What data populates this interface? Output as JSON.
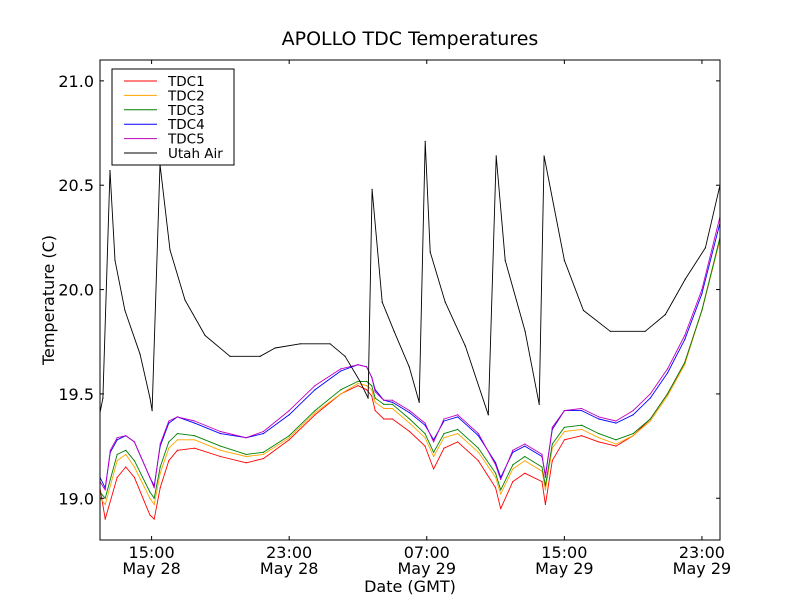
{
  "chart_data": {
    "type": "line",
    "title": "APOLLO TDC Temperatures",
    "xlabel": "Date (GMT)",
    "ylabel": "Temperature (C)",
    "x_units": "hours since May 28 12:00 GMT",
    "xlim": [
      0,
      36.05
    ],
    "ylim": [
      18.8,
      21.1
    ],
    "grid": false,
    "legend_position": "top-left",
    "x_ticks": [
      {
        "value": 3,
        "line1": "15:00",
        "line2": "May 28"
      },
      {
        "value": 11,
        "line1": "23:00",
        "line2": "May 28"
      },
      {
        "value": 19,
        "line1": "07:00",
        "line2": "May 29"
      },
      {
        "value": 27,
        "line1": "15:00",
        "line2": "May 29"
      },
      {
        "value": 35,
        "line1": "23:00",
        "line2": "May 29"
      }
    ],
    "y_ticks": [
      {
        "value": 19.0,
        "label": "19.0"
      },
      {
        "value": 19.5,
        "label": "19.5"
      },
      {
        "value": 20.0,
        "label": "20.0"
      },
      {
        "value": 20.5,
        "label": "20.5"
      },
      {
        "value": 21.0,
        "label": "21.0"
      }
    ],
    "series": [
      {
        "name": "TDC1",
        "color": "#ff0000",
        "x": [
          0,
          0.3,
          1.0,
          1.5,
          2.0,
          2.9,
          3.15,
          3.5,
          4.0,
          4.5,
          5.5,
          7.0,
          8.5,
          9.5,
          11.0,
          12.5,
          14.0,
          15.0,
          15.5,
          15.8,
          16.0,
          16.5,
          17.0,
          18.0,
          18.9,
          19.4,
          20.0,
          20.8,
          22.0,
          23.0,
          23.3,
          24.0,
          24.7,
          25.7,
          25.9,
          26.3,
          27.0,
          28.0,
          29.0,
          30.0,
          31.0,
          32.0,
          33.0,
          34.0,
          35.0,
          36.05
        ],
        "y": [
          19.05,
          18.9,
          19.1,
          19.15,
          19.1,
          18.92,
          18.9,
          19.05,
          19.18,
          19.23,
          19.24,
          19.2,
          19.17,
          19.19,
          19.28,
          19.4,
          19.5,
          19.54,
          19.52,
          19.49,
          19.42,
          19.38,
          19.38,
          19.32,
          19.25,
          19.14,
          19.24,
          19.27,
          19.18,
          19.05,
          18.95,
          19.08,
          19.12,
          19.08,
          18.97,
          19.18,
          19.28,
          19.3,
          19.27,
          19.25,
          19.3,
          19.38,
          19.5,
          19.65,
          19.9,
          20.24
        ]
      },
      {
        "name": "TDC2",
        "color": "#ffa500",
        "x": [
          0,
          0.3,
          1.0,
          1.5,
          2.0,
          2.9,
          3.15,
          3.5,
          4.0,
          4.5,
          5.5,
          7.0,
          8.5,
          9.5,
          11.0,
          12.5,
          14.0,
          15.0,
          15.5,
          15.8,
          16.0,
          16.5,
          17.0,
          18.0,
          18.9,
          19.4,
          20.0,
          20.8,
          22.0,
          23.0,
          23.3,
          24.0,
          24.7,
          25.7,
          25.9,
          26.3,
          27.0,
          28.0,
          29.0,
          30.0,
          31.0,
          32.0,
          33.0,
          34.0,
          35.0,
          36.05
        ],
        "y": [
          19.0,
          18.97,
          19.18,
          19.21,
          19.15,
          19.0,
          18.97,
          19.12,
          19.24,
          19.28,
          19.28,
          19.23,
          19.2,
          19.21,
          19.29,
          19.41,
          19.5,
          19.55,
          19.54,
          19.52,
          19.46,
          19.43,
          19.43,
          19.36,
          19.29,
          19.2,
          19.29,
          19.31,
          19.22,
          19.1,
          19.02,
          19.14,
          19.18,
          19.13,
          19.04,
          19.24,
          19.32,
          19.33,
          19.29,
          19.26,
          19.3,
          19.37,
          19.49,
          19.64,
          19.9,
          20.24
        ]
      },
      {
        "name": "TDC3",
        "color": "#008000",
        "x": [
          0,
          0.3,
          1.0,
          1.5,
          2.0,
          2.9,
          3.15,
          3.5,
          4.0,
          4.5,
          5.5,
          7.0,
          8.5,
          9.5,
          11.0,
          12.5,
          14.0,
          15.0,
          15.5,
          15.8,
          16.0,
          16.5,
          17.0,
          18.0,
          18.9,
          19.4,
          20.0,
          20.8,
          22.0,
          23.0,
          23.3,
          24.0,
          24.7,
          25.7,
          25.9,
          26.3,
          27.0,
          28.0,
          29.0,
          30.0,
          31.0,
          32.0,
          33.0,
          34.0,
          35.0,
          36.05
        ],
        "y": [
          19.03,
          19.0,
          19.21,
          19.23,
          19.18,
          19.03,
          19.0,
          19.15,
          19.27,
          19.31,
          19.3,
          19.25,
          19.21,
          19.22,
          19.3,
          19.42,
          19.52,
          19.56,
          19.56,
          19.54,
          19.48,
          19.45,
          19.45,
          19.38,
          19.31,
          19.22,
          19.31,
          19.33,
          19.24,
          19.12,
          19.04,
          19.16,
          19.2,
          19.15,
          19.06,
          19.26,
          19.34,
          19.35,
          19.31,
          19.28,
          19.31,
          19.38,
          19.5,
          19.65,
          19.9,
          20.25
        ]
      },
      {
        "name": "TDC4",
        "color": "#0000ff",
        "x": [
          0,
          0.3,
          0.6,
          1.0,
          1.5,
          2.0,
          2.9,
          3.15,
          3.5,
          4.0,
          4.5,
          5.5,
          7.0,
          8.5,
          9.5,
          11.0,
          12.5,
          14.0,
          15.0,
          15.5,
          15.8,
          16.0,
          16.5,
          17.0,
          18.0,
          18.9,
          19.4,
          20.0,
          20.8,
          22.0,
          23.0,
          23.3,
          24.0,
          24.7,
          25.7,
          25.9,
          26.3,
          27.0,
          28.0,
          29.0,
          30.0,
          31.0,
          32.0,
          33.0,
          34.0,
          35.0,
          36.05
        ],
        "y": [
          19.1,
          19.05,
          19.22,
          19.28,
          19.3,
          19.27,
          19.1,
          19.06,
          19.25,
          19.36,
          19.39,
          19.36,
          19.31,
          19.29,
          19.31,
          19.4,
          19.52,
          19.61,
          19.64,
          19.63,
          19.58,
          19.52,
          19.47,
          19.46,
          19.41,
          19.35,
          19.28,
          19.37,
          19.39,
          19.3,
          19.17,
          19.1,
          19.22,
          19.25,
          19.2,
          19.11,
          19.33,
          19.42,
          19.42,
          19.38,
          19.36,
          19.4,
          19.48,
          19.6,
          19.76,
          19.98,
          20.32
        ]
      },
      {
        "name": "TDC5",
        "color": "#bf00bf",
        "x": [
          0,
          0.3,
          0.6,
          1.0,
          1.5,
          2.0,
          2.9,
          3.15,
          3.5,
          4.0,
          4.5,
          5.5,
          7.0,
          8.5,
          9.5,
          11.0,
          12.5,
          14.0,
          15.0,
          15.5,
          15.8,
          16.0,
          16.5,
          17.0,
          18.0,
          18.9,
          19.4,
          20.0,
          20.8,
          22.0,
          23.0,
          23.3,
          24.0,
          24.7,
          25.7,
          25.9,
          26.3,
          27.0,
          28.0,
          29.0,
          30.0,
          31.0,
          32.0,
          33.0,
          34.0,
          35.0,
          36.05
        ],
        "y": [
          19.08,
          19.04,
          19.23,
          19.29,
          19.3,
          19.27,
          19.1,
          19.05,
          19.26,
          19.37,
          19.39,
          19.37,
          19.32,
          19.29,
          19.32,
          19.42,
          19.54,
          19.62,
          19.64,
          19.63,
          19.58,
          19.51,
          19.47,
          19.47,
          19.42,
          19.36,
          19.27,
          19.38,
          19.4,
          19.31,
          19.16,
          19.09,
          19.23,
          19.26,
          19.21,
          19.1,
          19.34,
          19.42,
          19.43,
          19.39,
          19.37,
          19.42,
          19.5,
          19.62,
          19.78,
          20.0,
          20.35
        ]
      },
      {
        "name": "Utah Air",
        "color": "#000000",
        "x": [
          0,
          0.17,
          0.58,
          0.87,
          1.45,
          2.33,
          2.91,
          3.03,
          3.49,
          4.07,
          4.94,
          6.11,
          7.56,
          9.31,
          10.18,
          11.64,
          13.38,
          14.25,
          15.12,
          15.59,
          15.82,
          16.41,
          17.1,
          17.98,
          18.56,
          18.91,
          19.2,
          20.07,
          21.24,
          22.58,
          23.04,
          23.56,
          24.72,
          25.54,
          25.82,
          27.0,
          28.11,
          29.67,
          31.7,
          32.87,
          34.03,
          35.2,
          36.05
        ],
        "y": [
          19.41,
          19.48,
          20.57,
          20.14,
          19.9,
          19.69,
          19.48,
          19.42,
          20.6,
          20.19,
          19.95,
          19.78,
          19.68,
          19.68,
          19.72,
          19.74,
          19.74,
          19.68,
          19.56,
          19.48,
          20.48,
          19.94,
          19.8,
          19.63,
          19.46,
          20.71,
          20.18,
          19.94,
          19.73,
          19.4,
          20.64,
          20.14,
          19.8,
          19.45,
          20.64,
          20.14,
          19.9,
          19.8,
          19.8,
          19.88,
          20.05,
          20.2,
          20.5
        ]
      }
    ]
  }
}
